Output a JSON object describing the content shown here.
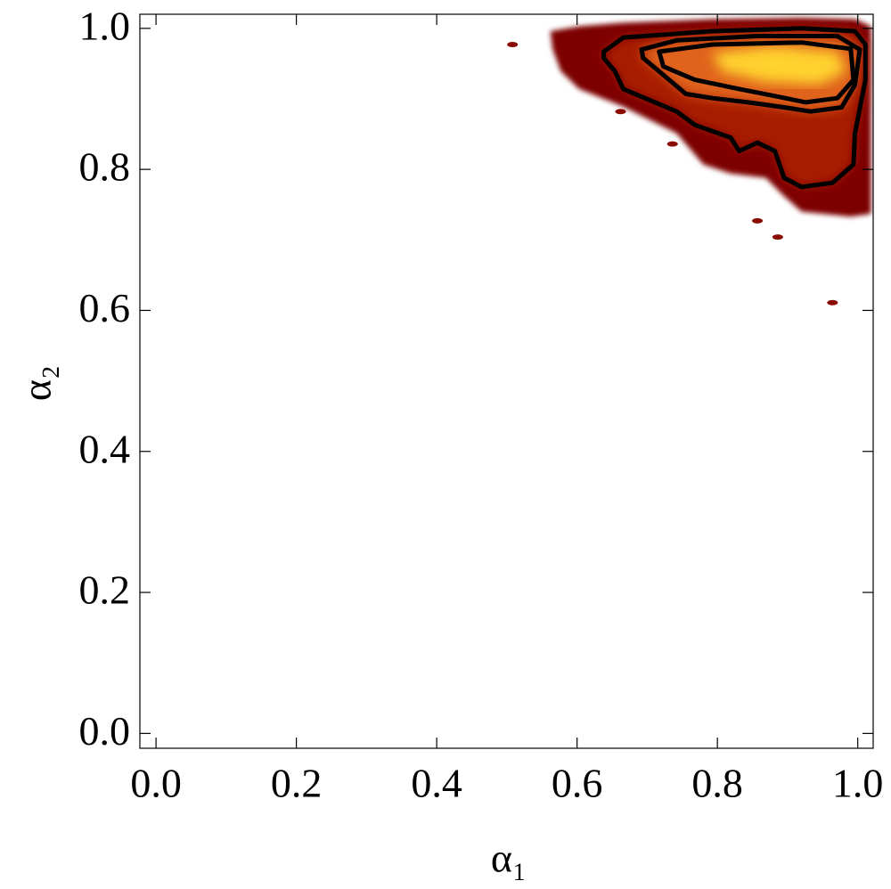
{
  "chart_data": {
    "type": "density",
    "x_label": "α₁",
    "y_label": "α₂",
    "xlim": [
      -0.023,
      1.022
    ],
    "ylim": [
      -0.021,
      1.02
    ],
    "xticks": [
      {
        "value": 0,
        "label": "0.0"
      },
      0.2,
      0.4,
      0.6,
      0.8,
      {
        "value": 1,
        "label": "1.0"
      }
    ],
    "yticks": [
      {
        "value": 0,
        "label": "0.0"
      },
      0.2,
      0.4,
      0.6,
      0.8,
      {
        "value": 1,
        "label": "1.0"
      }
    ],
    "regions": [
      {
        "color": "#7d0000",
        "x": [
          0.562,
          0.603,
          0.666,
          0.793,
          0.92,
          0.996,
          1.019,
          1.019,
          0.99,
          0.92,
          0.895,
          0.869,
          0.819,
          0.78,
          0.742,
          0.666,
          0.603,
          0.577,
          0.565
        ],
        "y": [
          0.996,
          1.003,
          1.008,
          1.013,
          1.015,
          1.013,
          1.003,
          0.737,
          0.733,
          0.74,
          0.762,
          0.788,
          0.794,
          0.807,
          0.851,
          0.889,
          0.914,
          0.939,
          0.971
        ]
      },
      {
        "color": "#a81c04",
        "x": [
          0.638,
          0.666,
          0.793,
          0.92,
          0.996,
          1.011,
          1.011,
          0.996,
          0.994,
          0.964,
          0.92,
          0.895,
          0.882,
          0.857,
          0.831,
          0.819,
          0.768,
          0.742,
          0.666,
          0.654,
          0.638
        ],
        "y": [
          0.967,
          0.987,
          0.996,
          1.0,
          0.996,
          0.977,
          0.927,
          0.851,
          0.807,
          0.781,
          0.775,
          0.788,
          0.826,
          0.838,
          0.826,
          0.845,
          0.863,
          0.882,
          0.914,
          0.939,
          0.958
        ]
      },
      {
        "color": "#e0641a",
        "x": [
          0.692,
          0.742,
          0.857,
          0.971,
          1.003,
          0.996,
          0.977,
          0.933,
          0.895,
          0.844,
          0.793,
          0.755,
          0.717,
          0.694
        ],
        "y": [
          0.97,
          0.983,
          0.989,
          0.989,
          0.97,
          0.92,
          0.888,
          0.882,
          0.888,
          0.895,
          0.901,
          0.907,
          0.939,
          0.958
        ]
      },
      {
        "color": "#ffd22e",
        "x": [
          0.793,
          0.882,
          0.971,
          0.984,
          0.945,
          0.869,
          0.806
        ],
        "y": [
          0.965,
          0.975,
          0.967,
          0.939,
          0.92,
          0.924,
          0.939
        ]
      }
    ],
    "contours": [
      {
        "color": "#000000",
        "x": [
          0.638,
          0.666,
          0.793,
          0.92,
          0.996,
          1.011,
          1.011,
          0.996,
          0.994,
          0.964,
          0.92,
          0.895,
          0.882,
          0.857,
          0.831,
          0.819,
          0.768,
          0.742,
          0.666,
          0.654,
          0.638
        ],
        "y": [
          0.967,
          0.987,
          0.996,
          1.0,
          0.996,
          0.977,
          0.927,
          0.851,
          0.807,
          0.781,
          0.775,
          0.788,
          0.826,
          0.838,
          0.826,
          0.845,
          0.863,
          0.882,
          0.914,
          0.939,
          0.958
        ]
      },
      {
        "color": "#000000",
        "x": [
          0.692,
          0.742,
          0.857,
          0.971,
          1.003,
          0.996,
          0.977,
          0.933,
          0.895,
          0.844,
          0.793,
          0.755,
          0.717,
          0.694
        ],
        "y": [
          0.97,
          0.983,
          0.989,
          0.989,
          0.97,
          0.92,
          0.888,
          0.882,
          0.888,
          0.895,
          0.901,
          0.907,
          0.939,
          0.958
        ]
      },
      {
        "color": "#000000",
        "x": [
          0.717,
          0.793,
          0.92,
          0.99,
          0.994,
          0.971,
          0.926,
          0.882,
          0.831,
          0.768,
          0.723
        ],
        "y": [
          0.967,
          0.977,
          0.98,
          0.971,
          0.927,
          0.901,
          0.895,
          0.904,
          0.914,
          0.927,
          0.946
        ]
      }
    ],
    "points": {
      "color": "#8a0a00",
      "x": [
        0.508,
        0.662,
        0.736,
        0.857,
        0.886,
        0.964
      ],
      "y": [
        0.977,
        0.882,
        0.836,
        0.727,
        0.704,
        0.611
      ]
    }
  }
}
